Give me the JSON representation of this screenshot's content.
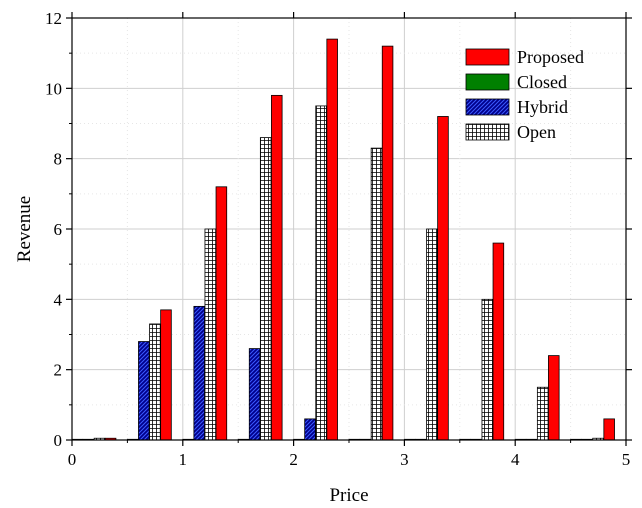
{
  "chart_data": {
    "type": "bar",
    "xlabel": "Price",
    "ylabel": "Revenue",
    "xlim": [
      0,
      5
    ],
    "ylim": [
      0,
      12
    ],
    "x_ticks": [
      0,
      1,
      2,
      3,
      4,
      5
    ],
    "y_ticks": [
      0,
      2,
      4,
      6,
      8,
      10,
      12
    ],
    "grid": true,
    "legend_position": "top-right",
    "x": [
      0,
      0.5,
      1,
      1.5,
      2,
      2.5,
      3,
      3.5,
      4,
      4.5
    ],
    "series": [
      {
        "name": "Closed",
        "color": "#008000",
        "pattern": "solid",
        "values": [
          0.02,
          0.02,
          0.02,
          0.02,
          0.02,
          0.02,
          0.02,
          0.02,
          0.02,
          0.02
        ]
      },
      {
        "name": "Hybrid",
        "color": "#00008b",
        "pattern": "diagonal",
        "values": [
          0.02,
          2.8,
          3.8,
          2.6,
          0.6,
          0.02,
          0.02,
          0.02,
          0.02,
          0.02
        ]
      },
      {
        "name": "Open",
        "color": "#ffffff",
        "pattern": "crosshatch",
        "values": [
          0.05,
          3.3,
          6.0,
          8.6,
          9.5,
          8.3,
          6.0,
          4.0,
          1.5,
          0.05
        ]
      },
      {
        "name": "Proposed",
        "color": "#ff0000",
        "pattern": "solid",
        "values": [
          0.05,
          3.7,
          7.2,
          9.8,
          11.4,
          11.2,
          9.2,
          5.6,
          2.4,
          0.6
        ]
      }
    ],
    "legend_order": [
      "Proposed",
      "Closed",
      "Hybrid",
      "Open"
    ]
  }
}
